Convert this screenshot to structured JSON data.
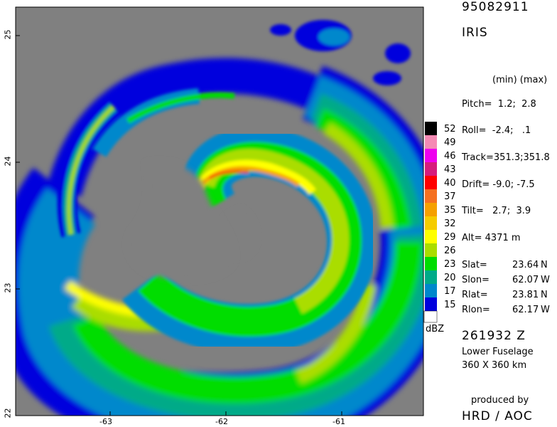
{
  "header": {
    "flight_id": "95082911",
    "system": "IRIS"
  },
  "axes": {
    "y_ticks": [
      "25",
      "24",
      "23",
      "22"
    ],
    "x_ticks": [
      "-63",
      "-62",
      "-61"
    ]
  },
  "legend": {
    "unit": "dBZ",
    "levels": [
      {
        "label": "52",
        "color": "#000000"
      },
      {
        "label": "49",
        "color": "#f58ab4"
      },
      {
        "label": "46",
        "color": "#ee00ee"
      },
      {
        "label": "43",
        "color": "#d61c7c"
      },
      {
        "label": "40",
        "color": "#ff0000"
      },
      {
        "label": "37",
        "color": "#f57020"
      },
      {
        "label": "35",
        "color": "#f5a000"
      },
      {
        "label": "32",
        "color": "#f5cc00"
      },
      {
        "label": "29",
        "color": "#ffff00"
      },
      {
        "label": "26",
        "color": "#aadd00"
      },
      {
        "label": "23",
        "color": "#00dd00"
      },
      {
        "label": "20",
        "color": "#00aa88"
      },
      {
        "label": "17",
        "color": "#0088cc"
      },
      {
        "label": "15",
        "color": "#0000dd"
      }
    ]
  },
  "params": {
    "header": "(min) (max)",
    "pitch": "Pitch=  1.2;  2.8",
    "roll": "Roll=  -2.4;   .1",
    "track": "Track=351.3;351.8",
    "drift": "Drift= -9.0; -7.5",
    "tilt": "Tilt=   2.7;  3.9",
    "alt": "Alt= 4371 m"
  },
  "positions": [
    {
      "name": "Slat=",
      "value": "23.64",
      "dir": "N"
    },
    {
      "name": "Slon=",
      "value": "62.07",
      "dir": "W"
    },
    {
      "name": "Rlat=",
      "value": "23.81",
      "dir": "N"
    },
    {
      "name": "Rlon=",
      "value": "62.17",
      "dir": "W"
    }
  ],
  "footer": {
    "time": "261932 Z",
    "antenna": "Lower Fuselage",
    "range": "360 X 360 km",
    "produced": "produced by",
    "org": "HRD / AOC"
  }
}
